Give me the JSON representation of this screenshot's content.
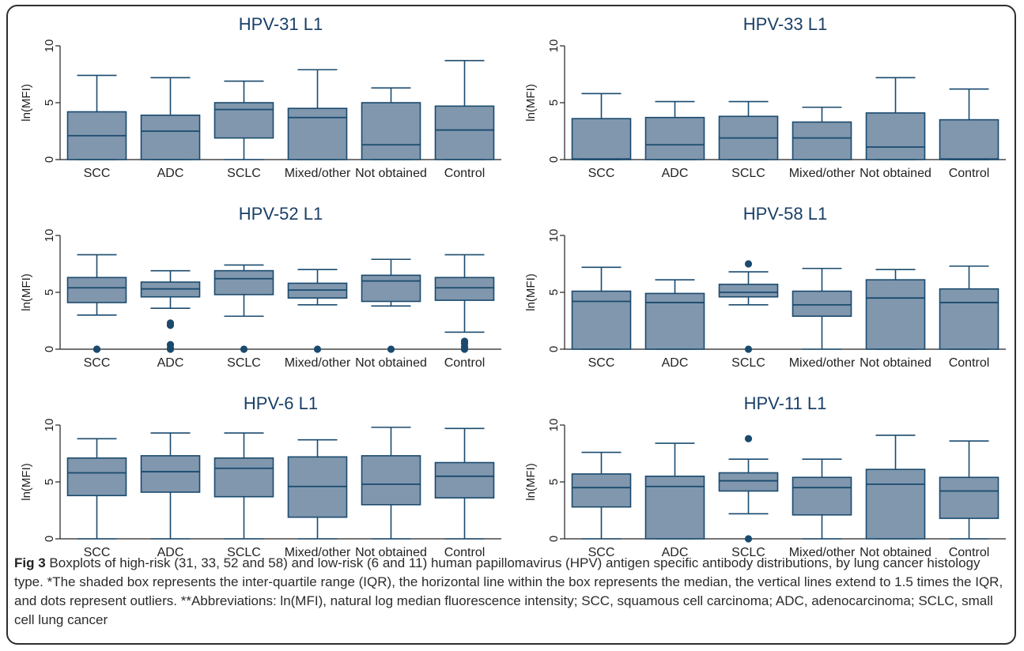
{
  "figure": {
    "caption_label": "Fig 3",
    "caption_text": "Boxplots of high-risk (31, 33, 52 and 58) and low-risk (6 and 11) human papillomavirus (HPV) antigen specific antibody distributions, by lung cancer histology type. *The shaded box represents the inter-quartile range (IQR), the horizontal line within the box represents the median, the vertical lines extend to 1.5 times the IQR, and dots represent outliers. **Abbreviations: ln(MFI), natural log median fluorescence intensity; SCC, squamous cell carcinoma; ADC, adenocarcinoma; SCLC, small cell lung cancer"
  },
  "colors": {
    "box_fill": "#8097ad",
    "line": "#1a4a6e",
    "outlier": "#1a4a6e",
    "axis": "#222222",
    "title": "#1a3f66"
  },
  "chart_data": [
    {
      "type": "box",
      "title": "HPV-31 L1",
      "ylabel": "ln(MFI)",
      "yticks": [
        0,
        5,
        10
      ],
      "ylim": [
        0,
        10
      ],
      "grid": false,
      "categories": [
        "SCC",
        "ADC",
        "SCLC",
        "Mixed/other",
        "Not obtained",
        "Control"
      ],
      "boxes": [
        {
          "min": 0,
          "q1": 0,
          "median": 2.1,
          "q3": 4.2,
          "max": 7.4,
          "outliers": []
        },
        {
          "min": 0,
          "q1": 0,
          "median": 2.5,
          "q3": 3.9,
          "max": 7.2,
          "outliers": []
        },
        {
          "min": 0,
          "q1": 1.9,
          "median": 4.4,
          "q3": 5.0,
          "max": 6.9,
          "outliers": []
        },
        {
          "min": 0,
          "q1": 0,
          "median": 3.7,
          "q3": 4.5,
          "max": 7.9,
          "outliers": []
        },
        {
          "min": 0,
          "q1": 0,
          "median": 1.3,
          "q3": 5.0,
          "max": 6.3,
          "outliers": []
        },
        {
          "min": 0,
          "q1": 0,
          "median": 2.6,
          "q3": 4.7,
          "max": 8.7,
          "outliers": []
        }
      ]
    },
    {
      "type": "box",
      "title": "HPV-33 L1",
      "ylabel": "ln(MFI)",
      "yticks": [
        0,
        5,
        10
      ],
      "ylim": [
        0,
        10
      ],
      "grid": false,
      "categories": [
        "SCC",
        "ADC",
        "SCLC",
        "Mixed/other",
        "Not obtained",
        "Control"
      ],
      "boxes": [
        {
          "min": 0,
          "q1": 0,
          "median": 0.05,
          "q3": 3.6,
          "max": 5.8,
          "outliers": []
        },
        {
          "min": 0,
          "q1": 0,
          "median": 1.3,
          "q3": 3.7,
          "max": 5.1,
          "outliers": []
        },
        {
          "min": 0,
          "q1": 0,
          "median": 1.9,
          "q3": 3.8,
          "max": 5.1,
          "outliers": []
        },
        {
          "min": 0,
          "q1": 0,
          "median": 1.9,
          "q3": 3.3,
          "max": 4.6,
          "outliers": []
        },
        {
          "min": 0,
          "q1": 0,
          "median": 1.1,
          "q3": 4.1,
          "max": 7.2,
          "outliers": []
        },
        {
          "min": 0,
          "q1": 0,
          "median": 0.05,
          "q3": 3.5,
          "max": 6.2,
          "outliers": []
        }
      ]
    },
    {
      "type": "box",
      "title": "HPV-52 L1",
      "ylabel": "ln(MFI)",
      "yticks": [
        0,
        5,
        10
      ],
      "ylim": [
        0,
        10
      ],
      "grid": false,
      "categories": [
        "SCC",
        "ADC",
        "SCLC",
        "Mixed/other",
        "Not obtained",
        "Control"
      ],
      "boxes": [
        {
          "min": 3.0,
          "q1": 4.1,
          "median": 5.4,
          "q3": 6.3,
          "max": 8.3,
          "outliers": [
            0,
            0
          ]
        },
        {
          "min": 3.6,
          "q1": 4.6,
          "median": 5.3,
          "q3": 5.9,
          "max": 6.9,
          "outliers": [
            2.1,
            2.3,
            0.4,
            0.1,
            0
          ]
        },
        {
          "min": 2.9,
          "q1": 4.8,
          "median": 6.2,
          "q3": 6.9,
          "max": 7.4,
          "outliers": [
            0
          ]
        },
        {
          "min": 3.9,
          "q1": 4.5,
          "median": 5.2,
          "q3": 5.8,
          "max": 7.0,
          "outliers": [
            0
          ]
        },
        {
          "min": 3.8,
          "q1": 4.2,
          "median": 6.0,
          "q3": 6.5,
          "max": 7.9,
          "outliers": [
            0
          ]
        },
        {
          "min": 1.5,
          "q1": 4.3,
          "median": 5.4,
          "q3": 6.3,
          "max": 8.3,
          "outliers": [
            0.7,
            0.5,
            0.2,
            0
          ]
        }
      ]
    },
    {
      "type": "box",
      "title": "HPV-58 L1",
      "ylabel": "ln(MFI)",
      "yticks": [
        0,
        5,
        10
      ],
      "ylim": [
        0,
        10
      ],
      "grid": false,
      "categories": [
        "SCC",
        "ADC",
        "SCLC",
        "Mixed/other",
        "Not obtained",
        "Control"
      ],
      "boxes": [
        {
          "min": 0,
          "q1": 0,
          "median": 4.2,
          "q3": 5.1,
          "max": 7.2,
          "outliers": []
        },
        {
          "min": 0,
          "q1": 0,
          "median": 4.1,
          "q3": 4.9,
          "max": 6.1,
          "outliers": []
        },
        {
          "min": 3.9,
          "q1": 4.6,
          "median": 5.0,
          "q3": 5.7,
          "max": 6.8,
          "outliers": [
            7.5,
            0
          ]
        },
        {
          "min": 0,
          "q1": 2.9,
          "median": 3.9,
          "q3": 5.1,
          "max": 7.1,
          "outliers": []
        },
        {
          "min": 0,
          "q1": 0,
          "median": 4.5,
          "q3": 6.1,
          "max": 7.0,
          "outliers": []
        },
        {
          "min": 0,
          "q1": 0,
          "median": 4.1,
          "q3": 5.3,
          "max": 7.3,
          "outliers": []
        }
      ]
    },
    {
      "type": "box",
      "title": "HPV-6 L1",
      "ylabel": "ln(MFI)",
      "yticks": [
        0,
        5,
        10
      ],
      "ylim": [
        0,
        10
      ],
      "grid": false,
      "categories": [
        "SCC",
        "ADC",
        "SCLC",
        "Mixed/other",
        "Not obtained",
        "Control"
      ],
      "boxes": [
        {
          "min": 0,
          "q1": 3.8,
          "median": 5.8,
          "q3": 7.1,
          "max": 8.8,
          "outliers": []
        },
        {
          "min": 0,
          "q1": 4.1,
          "median": 5.9,
          "q3": 7.3,
          "max": 9.3,
          "outliers": []
        },
        {
          "min": 0,
          "q1": 3.7,
          "median": 6.2,
          "q3": 7.1,
          "max": 9.3,
          "outliers": []
        },
        {
          "min": 0,
          "q1": 1.9,
          "median": 4.6,
          "q3": 7.2,
          "max": 8.7,
          "outliers": []
        },
        {
          "min": 0,
          "q1": 3.0,
          "median": 4.8,
          "q3": 7.3,
          "max": 9.8,
          "outliers": []
        },
        {
          "min": 0,
          "q1": 3.6,
          "median": 5.5,
          "q3": 6.7,
          "max": 9.7,
          "outliers": []
        }
      ]
    },
    {
      "type": "box",
      "title": "HPV-11 L1",
      "ylabel": "ln(MFI)",
      "yticks": [
        0,
        5,
        10
      ],
      "ylim": [
        0,
        10
      ],
      "grid": false,
      "categories": [
        "SCC",
        "ADC",
        "SCLC",
        "Mixed/other",
        "Not obtained",
        "Control"
      ],
      "boxes": [
        {
          "min": 0,
          "q1": 2.8,
          "median": 4.5,
          "q3": 5.7,
          "max": 7.6,
          "outliers": []
        },
        {
          "min": 0,
          "q1": 0,
          "median": 4.6,
          "q3": 5.5,
          "max": 8.4,
          "outliers": []
        },
        {
          "min": 2.2,
          "q1": 4.2,
          "median": 5.1,
          "q3": 5.8,
          "max": 7.0,
          "outliers": [
            8.8,
            0
          ]
        },
        {
          "min": 0,
          "q1": 2.1,
          "median": 4.5,
          "q3": 5.4,
          "max": 7.0,
          "outliers": []
        },
        {
          "min": 0,
          "q1": 0,
          "median": 4.8,
          "q3": 6.1,
          "max": 9.1,
          "outliers": []
        },
        {
          "min": 0,
          "q1": 1.8,
          "median": 4.2,
          "q3": 5.4,
          "max": 8.6,
          "outliers": []
        }
      ]
    }
  ]
}
